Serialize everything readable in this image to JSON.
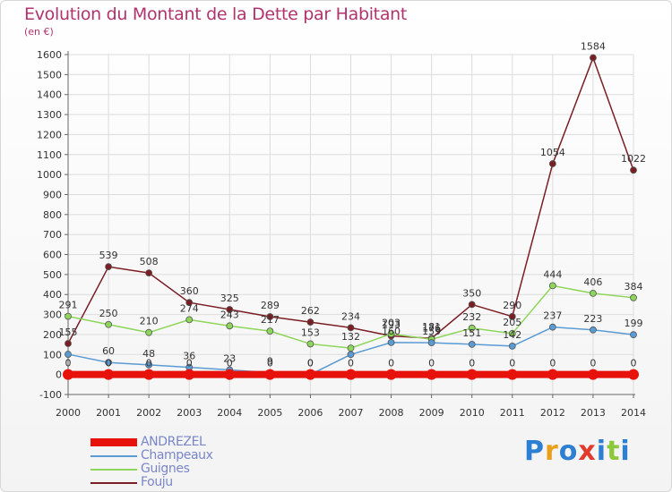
{
  "title": "Evolution du Montant de la Dette par Habitant",
  "unit_label": "(en €)",
  "logo": {
    "text": "Proxiti",
    "letter_colors": [
      "#2d7fd3",
      "#e8a01c",
      "#2d7fd3",
      "#e23b2e",
      "#2d7fd3",
      "#8cc83c",
      "#2d7fd3"
    ]
  },
  "chart_data": {
    "type": "line",
    "title": "Evolution du Montant de la Dette par Habitant",
    "ylabel": "(en €)",
    "x": [
      "2000",
      "2001",
      "2002",
      "2003",
      "2004",
      "2005",
      "2006",
      "2007",
      "2008",
      "2009",
      "2010",
      "2011",
      "2012",
      "2013",
      "2014"
    ],
    "ylim": [
      -100,
      1600
    ],
    "yticks": [
      "-100",
      "0",
      "100",
      "200",
      "300",
      "400",
      "500",
      "600",
      "700",
      "800",
      "900",
      "1000",
      "1100",
      "1200",
      "1300",
      "1400",
      "1500",
      "1600"
    ],
    "grid": true,
    "legend": "bottom-left",
    "series": [
      {
        "name": "ANDREZEL",
        "color": "#e8120c",
        "values": [
          0,
          0,
          0,
          0,
          0,
          0,
          0,
          0,
          0,
          0,
          0,
          0,
          0,
          0,
          0
        ],
        "labels": [
          "0",
          "0",
          "0",
          "0",
          "0",
          "0",
          "0",
          "0",
          "0",
          "0",
          "0",
          "0",
          "0",
          "0",
          "0"
        ]
      },
      {
        "name": "Champeaux",
        "color": "#5a9bd4",
        "values": [
          101,
          60,
          48,
          36,
          23,
          9,
          0,
          100,
          160,
          159,
          151,
          142,
          237,
          223,
          199
        ],
        "labels": [
          "",
          "60",
          "48",
          "36",
          "23",
          "9",
          "0",
          "",
          "160",
          "159",
          "151",
          "142",
          "237",
          "223",
          "199"
        ]
      },
      {
        "name": "Guignes",
        "color": "#8ed65a",
        "values": [
          291,
          250,
          210,
          274,
          243,
          217,
          153,
          132,
          203,
          176,
          232,
          205,
          444,
          406,
          384
        ],
        "labels": [
          "291",
          "250",
          "210",
          "274",
          "243",
          "217",
          "153",
          "132",
          "203",
          "176",
          "232",
          "205",
          "444",
          "406",
          "384"
        ]
      },
      {
        "name": "Fouju",
        "color": "#7a1e24",
        "values": [
          155,
          539,
          508,
          360,
          325,
          289,
          262,
          234,
          193,
          181,
          350,
          290,
          1054,
          1584,
          1022
        ],
        "labels": [
          "155",
          "539",
          "508",
          "360",
          "325",
          "289",
          "262",
          "234",
          "193",
          "181",
          "350",
          "290",
          "1054",
          "1584",
          "1022"
        ]
      }
    ]
  }
}
